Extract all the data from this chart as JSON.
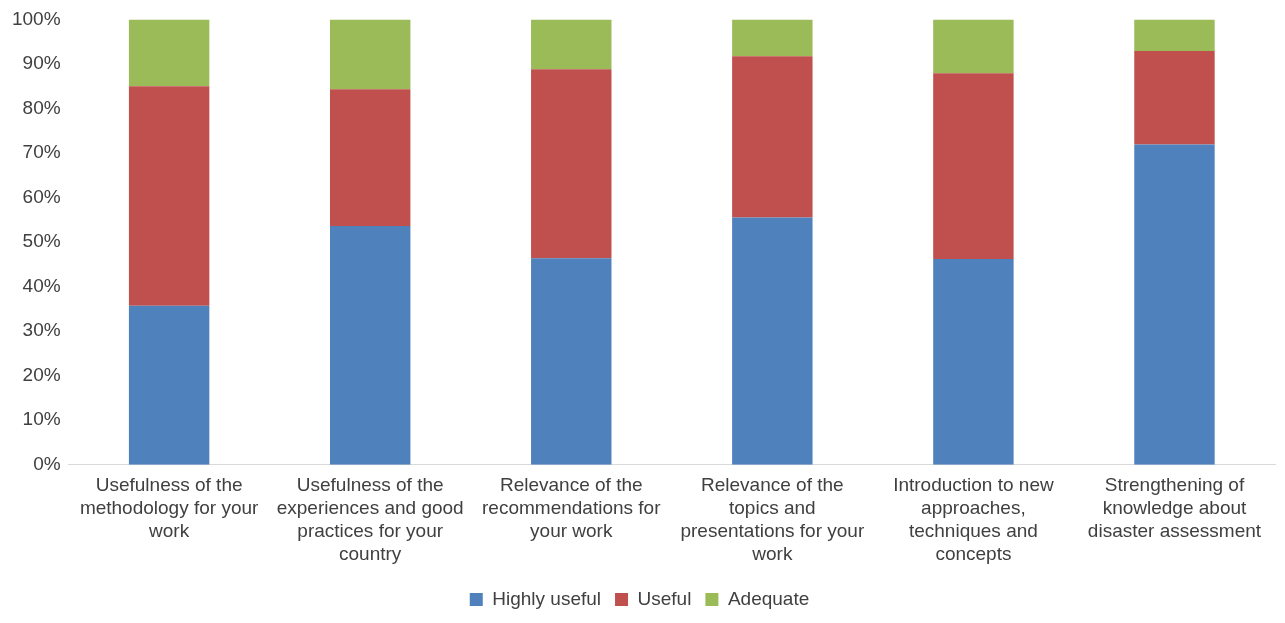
{
  "chart_data": {
    "type": "bar",
    "stacked": true,
    "categories": [
      "Usefulness of the methodology for your work",
      "Usefulness of the experiences and good practices for your country",
      "Relevance of the recommendations for your work",
      "Relevance of the topics and presentations for your work",
      "Introduction to new approaches, techniques and concepts",
      "Strengthening of knowledge about disaster assessment"
    ],
    "series": [
      {
        "name": "Highly useful",
        "color": "#4f81bd",
        "values": [
          35.7,
          53.6,
          46.4,
          55.5,
          46.2,
          71.9
        ]
      },
      {
        "name": "Useful",
        "color": "#c0504d",
        "values": [
          49.3,
          30.7,
          42.4,
          36.2,
          41.7,
          21.0
        ]
      },
      {
        "name": "Adequate",
        "color": "#9bbb59",
        "values": [
          15.0,
          15.7,
          11.2,
          8.3,
          12.1,
          7.1
        ]
      }
    ],
    "ylim": [
      0,
      100
    ],
    "yticks": [
      {
        "value": 0,
        "label": "0%"
      },
      {
        "value": 10,
        "label": "10%"
      },
      {
        "value": 20,
        "label": "20%"
      },
      {
        "value": 30,
        "label": "30%"
      },
      {
        "value": 40,
        "label": "40%"
      },
      {
        "value": 50,
        "label": "50%"
      },
      {
        "value": 60,
        "label": "60%"
      },
      {
        "value": 70,
        "label": "70%"
      },
      {
        "value": 80,
        "label": "80%"
      },
      {
        "value": 90,
        "label": "90%"
      },
      {
        "value": 100,
        "label": "100%"
      }
    ],
    "grid": false,
    "legend": "bottom"
  }
}
